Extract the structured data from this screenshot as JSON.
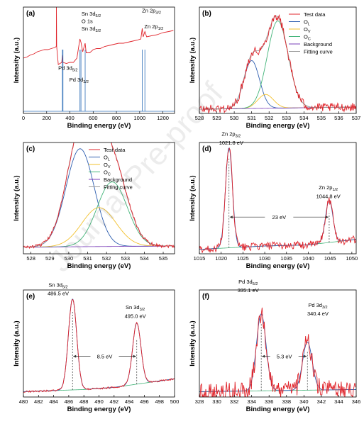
{
  "watermark": "Journal Pre-proof",
  "colors": {
    "test_data": "#e0242b",
    "OL": "#2f5fb0",
    "OV": "#f2c12e",
    "OC": "#44b57a",
    "background": "#7a3fb8",
    "fitting": "#9a9a9a",
    "survey_peaks": "#2f6fb8"
  },
  "chart_data": [
    {
      "label": "(a)",
      "type": "line",
      "xlabel": "Binding energy (eV)",
      "ylabel": "Intensity (a.u.)",
      "xlim": [
        0,
        1300
      ],
      "xticks": [
        0,
        200,
        400,
        600,
        800,
        1000,
        1200
      ],
      "xtick_labels": [
        "0",
        "200",
        "400",
        "600",
        "800",
        "1000",
        "1200"
      ],
      "series": [
        {
          "name": "",
          "values": [
            [
              0,
              0.52
            ],
            [
              30,
              0.53
            ],
            [
              60,
              0.55
            ],
            [
              90,
              0.56
            ],
            [
              120,
              0.58
            ],
            [
              150,
              0.59
            ],
            [
              180,
              0.6
            ],
            [
              210,
              0.6
            ],
            [
              240,
              0.61
            ],
            [
              270,
              0.62
            ],
            [
              283,
              0.63
            ],
            [
              284,
              1.0
            ],
            [
              286,
              0.63
            ],
            [
              300,
              0.46
            ],
            [
              330,
              0.48
            ],
            [
              335,
              0.55
            ],
            [
              340,
              0.48
            ],
            [
              370,
              0.47
            ],
            [
              400,
              0.48
            ],
            [
              430,
              0.48
            ],
            [
              460,
              0.52
            ],
            [
              486,
              0.7
            ],
            [
              495,
              0.67
            ],
            [
              510,
              0.58
            ],
            [
              531,
              0.66
            ],
            [
              540,
              0.57
            ],
            [
              570,
              0.57
            ],
            [
              600,
              0.6
            ],
            [
              630,
              0.61
            ],
            [
              660,
              0.61
            ],
            [
              700,
              0.63
            ],
            [
              740,
              0.64
            ],
            [
              780,
              0.65
            ],
            [
              820,
              0.66
            ],
            [
              860,
              0.66
            ],
            [
              900,
              0.67
            ],
            [
              940,
              0.68
            ],
            [
              980,
              0.69
            ],
            [
              1010,
              0.7
            ],
            [
              1022,
              0.8
            ],
            [
              1030,
              0.72
            ],
            [
              1045,
              0.77
            ],
            [
              1060,
              0.72
            ],
            [
              1100,
              0.73
            ],
            [
              1150,
              0.74
            ],
            [
              1200,
              0.76
            ],
            [
              1250,
              0.77
            ],
            [
              1290,
              0.78
            ]
          ]
        }
      ],
      "peak_lines": [
        335.1,
        340.4,
        486.5,
        495.0,
        531.0,
        1021.8,
        1044.8
      ],
      "annotations": [
        {
          "segments": [
            "Sn 3d",
            "5/2",
            ""
          ],
          "x": 500,
          "y": 0.92
        },
        {
          "segments": [
            "O 1s"
          ],
          "x": 500,
          "y": 0.85
        },
        {
          "segments": [
            "Sn 3d",
            "3/2",
            ""
          ],
          "x": 500,
          "y": 0.78
        },
        {
          "segments": [
            "Pd 3d",
            "5/2",
            ""
          ],
          "x": 300,
          "y": 0.41
        },
        {
          "segments": [
            "Pd 3d",
            "3/2",
            ""
          ],
          "x": 395,
          "y": 0.3
        },
        {
          "segments": [
            "Zn 2p",
            "3/2",
            ""
          ],
          "x": 1020,
          "y": 0.95
        },
        {
          "segments": [
            "Zn 2p",
            "1/2",
            ""
          ],
          "x": 1040,
          "y": 0.8
        }
      ]
    },
    {
      "label": "(b)",
      "type": "line",
      "xlabel": "Binding energy (eV)",
      "ylabel": "Intensity (a.u.)",
      "xlim": [
        528,
        537
      ],
      "xticks": [
        528,
        529,
        530,
        531,
        532,
        533,
        534,
        535,
        536,
        537
      ],
      "xtick_labels": [
        "528",
        "529",
        "530",
        "531",
        "532",
        "533",
        "534",
        "535",
        "536",
        "537"
      ],
      "legend": [
        "Test data",
        "O_L",
        "O_V",
        "O_C",
        "Background",
        "Fitting curve"
      ],
      "components": [
        {
          "name": "O_L",
          "center": 531.0,
          "height": 0.45,
          "width": 0.45
        },
        {
          "name": "O_V",
          "center": 531.8,
          "height": 0.13,
          "width": 0.45
        },
        {
          "name": "O_C",
          "center": 532.5,
          "height": 0.82,
          "width": 0.6
        }
      ],
      "background": [
        [
          528,
          0.04
        ],
        [
          537,
          0.06
        ]
      ],
      "noise": 0.04
    },
    {
      "label": "(c)",
      "type": "line",
      "xlabel": "Binding energy (eV)",
      "ylabel": "Intensity (a.u.)",
      "xlim": [
        527.6,
        535.6
      ],
      "xticks": [
        528,
        529,
        530,
        531,
        532,
        533,
        534,
        535
      ],
      "xtick_labels": [
        "528",
        "529",
        "530",
        "531",
        "532",
        "533",
        "534",
        "535"
      ],
      "legend": [
        "Test data",
        "O_L",
        "O_V",
        "O_C",
        "Background",
        "Fitting curve"
      ],
      "components": [
        {
          "name": "O_L",
          "center": 530.6,
          "height": 0.88,
          "width": 0.75
        },
        {
          "name": "O_V",
          "center": 531.6,
          "height": 0.35,
          "width": 0.9
        },
        {
          "name": "O_C",
          "center": 532.3,
          "height": 0.58,
          "width": 0.8
        }
      ],
      "background": [
        [
          527.6,
          0.06
        ],
        [
          535.6,
          0.07
        ]
      ],
      "noise": 0.015
    },
    {
      "label": "(d)",
      "type": "line",
      "xlabel": "Binding energy (eV)",
      "ylabel": "Intensity (a.u.)",
      "xlim": [
        1015,
        1051
      ],
      "xticks": [
        1015,
        1020,
        1025,
        1030,
        1035,
        1040,
        1045,
        1050
      ],
      "xtick_labels": [
        "1015",
        "1020",
        "1025",
        "1030",
        "1035",
        "1040",
        "1045",
        "1050"
      ],
      "components": [
        {
          "name": "Zn 2p3/2",
          "center": 1021.8,
          "height": 0.9,
          "width": 0.8
        },
        {
          "name": "Zn 2p1/2",
          "center": 1044.8,
          "height": 0.38,
          "width": 0.85
        }
      ],
      "background": [
        [
          1015,
          0.04
        ],
        [
          1030,
          0.07
        ],
        [
          1040,
          0.08
        ],
        [
          1051,
          0.13
        ]
      ],
      "noise": 0.035,
      "annotations": [
        {
          "segments": [
            "Zn 2p",
            "3/2",
            ""
          ],
          "x": 1022.3,
          "y": 1.06
        },
        {
          "segments": [
            "1021.8 eV"
          ],
          "x": 1022.3,
          "y": 0.98
        },
        {
          "segments": [
            "Zn 2p",
            "1/2",
            ""
          ],
          "x": 1044.6,
          "y": 0.58
        },
        {
          "segments": [
            "1044.8 eV"
          ],
          "x": 1044.6,
          "y": 0.5
        }
      ],
      "splitting": {
        "from": 1021.8,
        "to": 1044.8,
        "y": 0.33,
        "label": "23 eV"
      }
    },
    {
      "label": "(e)",
      "type": "line",
      "xlabel": "Binding energy (eV)",
      "ylabel": "Intensity (a.u.)",
      "xlim": [
        480,
        500
      ],
      "xticks": [
        480,
        482,
        484,
        486,
        488,
        490,
        492,
        494,
        496,
        498,
        500
      ],
      "xtick_labels": [
        "480",
        "482",
        "484",
        "486",
        "488",
        "490",
        "492",
        "494",
        "496",
        "498",
        "500"
      ],
      "components": [
        {
          "name": "Sn 3d5/2",
          "center": 486.5,
          "height": 0.85,
          "width": 0.55
        },
        {
          "name": "Sn 3d3/2",
          "center": 495.0,
          "height": 0.57,
          "width": 0.55
        }
      ],
      "background": [
        [
          480,
          0.05
        ],
        [
          488,
          0.07
        ],
        [
          492,
          0.09
        ],
        [
          500,
          0.17
        ]
      ],
      "noise": 0.008,
      "annotations": [
        {
          "segments": [
            "Sn 3d",
            "5/2",
            ""
          ],
          "x": 484.6,
          "y": 1.03
        },
        {
          "segments": [
            "486.5 eV"
          ],
          "x": 484.6,
          "y": 0.95
        },
        {
          "segments": [
            "Sn 3d",
            "3/2",
            ""
          ],
          "x": 494.8,
          "y": 0.82
        },
        {
          "segments": [
            "495.0 eV"
          ],
          "x": 494.8,
          "y": 0.74
        }
      ],
      "splitting": {
        "from": 486.5,
        "to": 495.0,
        "y": 0.38,
        "label": "8.5 eV"
      }
    },
    {
      "label": "(f)",
      "type": "line",
      "xlabel": "Binding energy (eV)",
      "ylabel": "Intensity (a.u.)",
      "xlim": [
        328,
        346
      ],
      "xticks": [
        328,
        330,
        332,
        334,
        336,
        338,
        340,
        342,
        344,
        346
      ],
      "xtick_labels": [
        "328",
        "330",
        "332",
        "334",
        "336",
        "338",
        "340",
        "342",
        "344",
        "346"
      ],
      "components": [
        {
          "name": "Pd 3d5/2",
          "center": 335.1,
          "height": 0.72,
          "width": 0.55
        },
        {
          "name": "Pd 3d3/2",
          "center": 340.4,
          "height": 0.45,
          "width": 0.55
        }
      ],
      "background": [
        [
          328,
          0.05
        ],
        [
          346,
          0.07
        ]
      ],
      "noise": 0.09,
      "annotations": [
        {
          "segments": [
            "Pd 3d",
            "5/2",
            ""
          ],
          "x": 333.6,
          "y": 1.06
        },
        {
          "segments": [
            "335.1 eV"
          ],
          "x": 333.6,
          "y": 0.98
        },
        {
          "segments": [
            "Pd 3d",
            "3/2",
            ""
          ],
          "x": 341.6,
          "y": 0.84
        },
        {
          "segments": [
            "340.4 eV"
          ],
          "x": 341.6,
          "y": 0.76
        }
      ],
      "splitting": {
        "from": 335.1,
        "to": 340.4,
        "y": 0.38,
        "label": "5.3 eV"
      }
    }
  ]
}
